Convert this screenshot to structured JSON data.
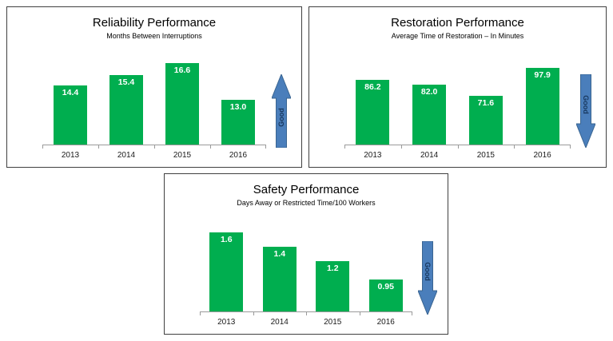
{
  "colors": {
    "bar": "#00AE4F",
    "bar_label": "#FFFFFF",
    "arrow_fill": "#4A7EBB",
    "arrow_border": "#3A6591",
    "arrow_text": "#17375E",
    "axis": "#9A9A9A",
    "panel_border": "#404040"
  },
  "chart_data": [
    {
      "id": "reliability",
      "type": "bar",
      "title": "Reliability Performance",
      "subtitle": "Months Between Interruptions",
      "categories": [
        "2013",
        "2014",
        "2015",
        "2016"
      ],
      "values": [
        14.4,
        15.4,
        16.6,
        13.0
      ],
      "labels": [
        "14.4",
        "15.4",
        "16.6",
        "13.0"
      ],
      "xlabel": "",
      "ylabel": "",
      "ylim": [
        8.6,
        17.4
      ],
      "grid": false,
      "good_arrow": {
        "direction": "up",
        "label": "Good"
      }
    },
    {
      "id": "restoration",
      "type": "bar",
      "title": "Restoration Performance",
      "subtitle": "Average Time of Restoration – In Minutes",
      "categories": [
        "2013",
        "2014",
        "2015",
        "2016"
      ],
      "values": [
        86.2,
        82.0,
        71.6,
        97.9
      ],
      "labels": [
        "86.2",
        "82.0",
        "71.6",
        "97.9"
      ],
      "xlabel": "",
      "ylabel": "",
      "ylim": [
        25,
        110
      ],
      "grid": false,
      "good_arrow": {
        "direction": "down",
        "label": "Good"
      }
    },
    {
      "id": "safety",
      "type": "bar",
      "title": "Safety Performance",
      "subtitle": "Days Away or Restricted Time/100 Workers",
      "categories": [
        "2013",
        "2014",
        "2015",
        "2016"
      ],
      "values": [
        1.6,
        1.4,
        1.2,
        0.95
      ],
      "labels": [
        "1.6",
        "1.4",
        "1.2",
        "0.95"
      ],
      "xlabel": "",
      "ylabel": "",
      "ylim": [
        0.5,
        1.75
      ],
      "grid": false,
      "good_arrow": {
        "direction": "down",
        "label": "Good"
      }
    }
  ]
}
